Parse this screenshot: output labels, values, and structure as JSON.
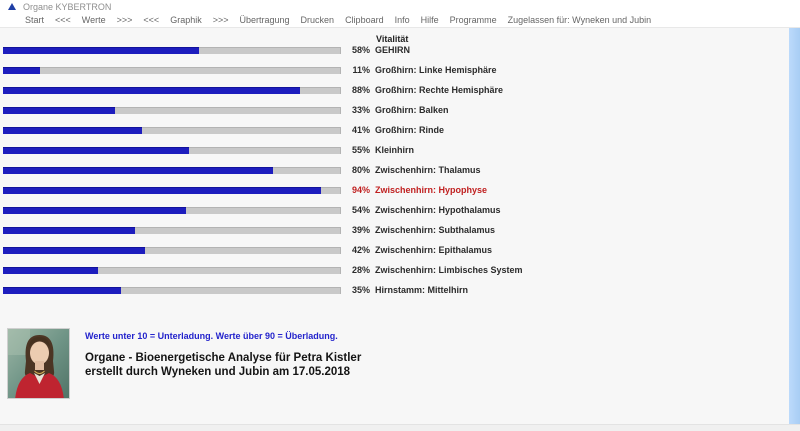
{
  "window": {
    "title": "Organe KYBERTRON"
  },
  "menu": {
    "items": [
      "Start",
      "<<<",
      "Werte",
      ">>>",
      "<<<",
      "Graphik",
      ">>>",
      "Übertragung",
      "Drucken",
      "Clipboard",
      "Info",
      "Hilfe",
      "Programme",
      "Zugelassen für: Wyneken und Jubin"
    ]
  },
  "chart_data": {
    "type": "bar",
    "title": "Vitalität",
    "unit": "%",
    "xlim": [
      0,
      100
    ],
    "bar_color": "#1d1dbe",
    "track_color": "#c9c9c9",
    "overload_color": "#c02020",
    "rows": [
      {
        "label": "GEHIRN",
        "value": 58,
        "overload": false
      },
      {
        "label": "Großhirn: Linke Hemisphäre",
        "value": 11,
        "overload": false
      },
      {
        "label": "Großhirn: Rechte Hemisphäre",
        "value": 88,
        "overload": false
      },
      {
        "label": "Großhirn: Balken",
        "value": 33,
        "overload": false
      },
      {
        "label": "Großhirn: Rinde",
        "value": 41,
        "overload": false
      },
      {
        "label": "Kleinhirn",
        "value": 55,
        "overload": false
      },
      {
        "label": "Zwischenhirn: Thalamus",
        "value": 80,
        "overload": false
      },
      {
        "label": "Zwischenhirn: Hypophyse",
        "value": 94,
        "overload": true
      },
      {
        "label": "Zwischenhirn: Hypothalamus",
        "value": 54,
        "overload": false
      },
      {
        "label": "Zwischenhirn: Subthalamus",
        "value": 39,
        "overload": false
      },
      {
        "label": "Zwischenhirn: Epithalamus",
        "value": 42,
        "overload": false
      },
      {
        "label": "Zwischenhirn: Limbisches System",
        "value": 28,
        "overload": false
      },
      {
        "label": "Hirnstamm: Mittelhirn",
        "value": 35,
        "overload": false
      }
    ]
  },
  "footer": {
    "note": "Werte unter 10 = Unterladung. Werte über 90 = Überladung.",
    "title_line1": "Organe - Bioenergetische Analyse für Petra Kistler",
    "title_line2": "erstellt durch Wyneken und Jubin am 17.05.2018"
  }
}
